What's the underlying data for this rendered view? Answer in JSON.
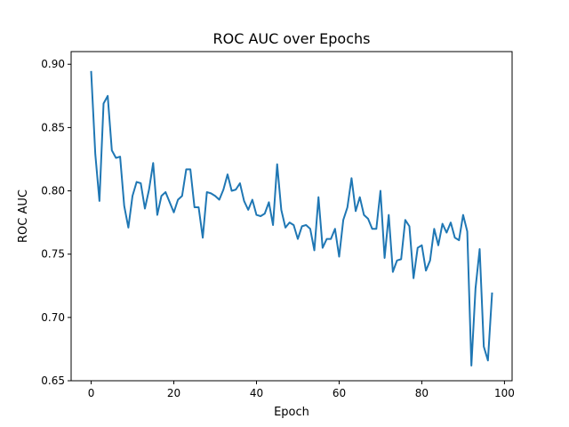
{
  "chart_data": {
    "type": "line",
    "title": "ROC AUC over Epochs",
    "xlabel": "Epoch",
    "ylabel": "ROC AUC",
    "xlim": [
      -4.85,
      101.85
    ],
    "ylim": [
      0.65,
      0.91
    ],
    "xticks": [
      0,
      20,
      40,
      60,
      80,
      100
    ],
    "yticks": [
      0.65,
      0.7,
      0.75,
      0.8,
      0.85,
      0.9
    ],
    "x_tick_labels": [
      "0",
      "20",
      "40",
      "60",
      "80",
      "100"
    ],
    "y_tick_labels": [
      "0.65",
      "0.70",
      "0.75",
      "0.80",
      "0.85",
      "0.90"
    ],
    "grid": false,
    "series": [
      {
        "color": "#1f77b4",
        "x": [
          0,
          1,
          2,
          3,
          4,
          5,
          6,
          7,
          8,
          9,
          10,
          11,
          12,
          13,
          14,
          15,
          16,
          17,
          18,
          19,
          20,
          21,
          22,
          23,
          24,
          25,
          26,
          27,
          28,
          29,
          30,
          31,
          32,
          33,
          34,
          35,
          36,
          37,
          38,
          39,
          40,
          41,
          42,
          43,
          44,
          45,
          46,
          47,
          48,
          49,
          50,
          51,
          52,
          53,
          54,
          55,
          56,
          57,
          58,
          59,
          60,
          61,
          62,
          63,
          64,
          65,
          66,
          67,
          68,
          69,
          70,
          71,
          72,
          73,
          74,
          75,
          76,
          77,
          78,
          79,
          80,
          81,
          82,
          83,
          84,
          85,
          86,
          87,
          88,
          89,
          90,
          91,
          92,
          93,
          94,
          95,
          96,
          97
        ],
        "values": [
          0.894,
          0.829,
          0.792,
          0.869,
          0.875,
          0.832,
          0.826,
          0.827,
          0.788,
          0.771,
          0.796,
          0.807,
          0.806,
          0.786,
          0.801,
          0.822,
          0.781,
          0.796,
          0.799,
          0.791,
          0.783,
          0.793,
          0.796,
          0.817,
          0.817,
          0.787,
          0.787,
          0.763,
          0.799,
          0.798,
          0.796,
          0.793,
          0.801,
          0.813,
          0.8,
          0.801,
          0.806,
          0.792,
          0.785,
          0.793,
          0.781,
          0.78,
          0.782,
          0.791,
          0.773,
          0.821,
          0.785,
          0.771,
          0.775,
          0.773,
          0.762,
          0.772,
          0.773,
          0.77,
          0.753,
          0.795,
          0.755,
          0.762,
          0.762,
          0.77,
          0.748,
          0.777,
          0.787,
          0.81,
          0.784,
          0.795,
          0.781,
          0.778,
          0.77,
          0.77,
          0.8,
          0.747,
          0.781,
          0.736,
          0.745,
          0.746,
          0.777,
          0.772,
          0.731,
          0.755,
          0.757,
          0.737,
          0.745,
          0.77,
          0.757,
          0.774,
          0.767,
          0.775,
          0.763,
          0.761,
          0.781,
          0.768,
          0.662,
          0.723,
          0.754,
          0.677,
          0.666,
          0.719
        ]
      }
    ]
  }
}
